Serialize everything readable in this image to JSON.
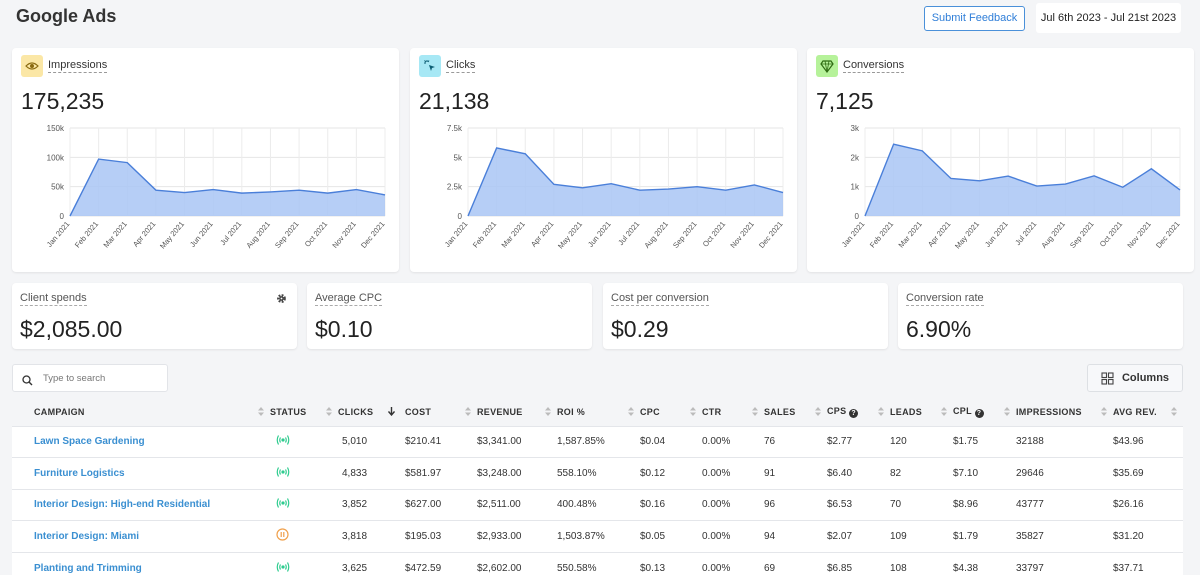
{
  "header": {
    "title": "Google Ads",
    "feedback_label": "Submit Feedback",
    "date_range": "Jul 6th 2023 - Jul 21st 2023"
  },
  "colors": {
    "accent": "#2f7ed8",
    "chart_fill": "#a9c6f5",
    "chart_line": "#4a7fd9",
    "link": "#3a8fd1",
    "status_active": "#2ecc8f",
    "status_paused": "#f0a04b"
  },
  "metrics": [
    {
      "label": "Impressions",
      "value": "175,235",
      "icon": "eye-icon",
      "icon_bg": "#fbe7a6"
    },
    {
      "label": "Clicks",
      "value": "21,138",
      "icon": "cursor-click-icon",
      "icon_bg": "#a7e8f5"
    },
    {
      "label": "Conversions",
      "value": "7,125",
      "icon": "diamond-icon",
      "icon_bg": "#b6f29a"
    }
  ],
  "chart_data": [
    {
      "type": "area",
      "categories": [
        "Jan 2021",
        "Feb 2021",
        "Mar 2021",
        "Apr 2021",
        "May 2021",
        "Jun 2021",
        "Jul 2021",
        "Aug 2021",
        "Sep 2021",
        "Oct 2021",
        "Nov 2021",
        "Dec 2021"
      ],
      "values": [
        0,
        97000,
        91000,
        44000,
        40000,
        45000,
        39000,
        41000,
        44000,
        39000,
        45000,
        36000
      ],
      "ylim": [
        0,
        150000
      ],
      "yticks": [
        "0",
        "50k",
        "100k",
        "150k"
      ],
      "grid": true
    },
    {
      "type": "area",
      "categories": [
        "Jan 2021",
        "Feb 2021",
        "Mar 2021",
        "Apr 2021",
        "May 2021",
        "Jun 2021",
        "Jul 2021",
        "Aug 2021",
        "Sep 2021",
        "Oct 2021",
        "Nov 2021",
        "Dec 2021"
      ],
      "values": [
        0,
        5800,
        5300,
        2700,
        2400,
        2750,
        2200,
        2300,
        2500,
        2200,
        2650,
        2000
      ],
      "ylim": [
        0,
        7500
      ],
      "yticks": [
        "0",
        "2.5k",
        "5k",
        "7.5k"
      ],
      "grid": true
    },
    {
      "type": "area",
      "categories": [
        "Jan 2021",
        "Feb 2021",
        "Mar 2021",
        "Apr 2021",
        "May 2021",
        "Jun 2021",
        "Jul 2021",
        "Aug 2021",
        "Sep 2021",
        "Oct 2021",
        "Nov 2021",
        "Dec 2021"
      ],
      "values": [
        0,
        2450,
        2220,
        1280,
        1200,
        1360,
        1020,
        1090,
        1370,
        980,
        1610,
        890
      ],
      "ylim": [
        0,
        3000
      ],
      "yticks": [
        "0",
        "1k",
        "2k",
        "3k"
      ],
      "grid": true
    }
  ],
  "summary": [
    {
      "label": "Client spends",
      "value": "$2,085.00"
    },
    {
      "label": "Average CPC",
      "value": "$0.10"
    },
    {
      "label": "Cost per conversion",
      "value": "$0.29"
    },
    {
      "label": "Conversion rate",
      "value": "6.90%"
    }
  ],
  "search": {
    "placeholder": "Type to search",
    "value": ""
  },
  "columns_label": "Columns",
  "table": {
    "headers": [
      "CAMPAIGN",
      "STATUS",
      "CLICKS",
      "COST",
      "REVENUE",
      "ROI %",
      "CPC",
      "CTR",
      "SALES",
      "CPS",
      "LEADS",
      "CPL",
      "IMPRESSIONS",
      "AVG REV."
    ],
    "rows": [
      {
        "campaign": "Lawn Space Gardening",
        "status": "active",
        "clicks": "5,010",
        "cost": "$210.41",
        "revenue": "$3,341.00",
        "roi": "1,587.85%",
        "cpc": "$0.04",
        "ctr": "0.00%",
        "sales": "76",
        "cps": "$2.77",
        "leads": "120",
        "cpl": "$1.75",
        "impressions": "32188",
        "avg_rev": "$43.96"
      },
      {
        "campaign": "Furniture Logistics",
        "status": "active",
        "clicks": "4,833",
        "cost": "$581.97",
        "revenue": "$3,248.00",
        "roi": "558.10%",
        "cpc": "$0.12",
        "ctr": "0.00%",
        "sales": "91",
        "cps": "$6.40",
        "leads": "82",
        "cpl": "$7.10",
        "impressions": "29646",
        "avg_rev": "$35.69"
      },
      {
        "campaign": "Interior Design: High-end Residential",
        "status": "active",
        "clicks": "3,852",
        "cost": "$627.00",
        "revenue": "$2,511.00",
        "roi": "400.48%",
        "cpc": "$0.16",
        "ctr": "0.00%",
        "sales": "96",
        "cps": "$6.53",
        "leads": "70",
        "cpl": "$8.96",
        "impressions": "43777",
        "avg_rev": "$26.16"
      },
      {
        "campaign": "Interior Design: Miami",
        "status": "paused",
        "clicks": "3,818",
        "cost": "$195.03",
        "revenue": "$2,933.00",
        "roi": "1,503.87%",
        "cpc": "$0.05",
        "ctr": "0.00%",
        "sales": "94",
        "cps": "$2.07",
        "leads": "109",
        "cpl": "$1.79",
        "impressions": "35827",
        "avg_rev": "$31.20"
      },
      {
        "campaign": "Planting and Trimming",
        "status": "active",
        "clicks": "3,625",
        "cost": "$472.59",
        "revenue": "$2,602.00",
        "roi": "550.58%",
        "cpc": "$0.13",
        "ctr": "0.00%",
        "sales": "69",
        "cps": "$6.85",
        "leads": "108",
        "cpl": "$4.38",
        "impressions": "33797",
        "avg_rev": "$37.71"
      }
    ]
  }
}
